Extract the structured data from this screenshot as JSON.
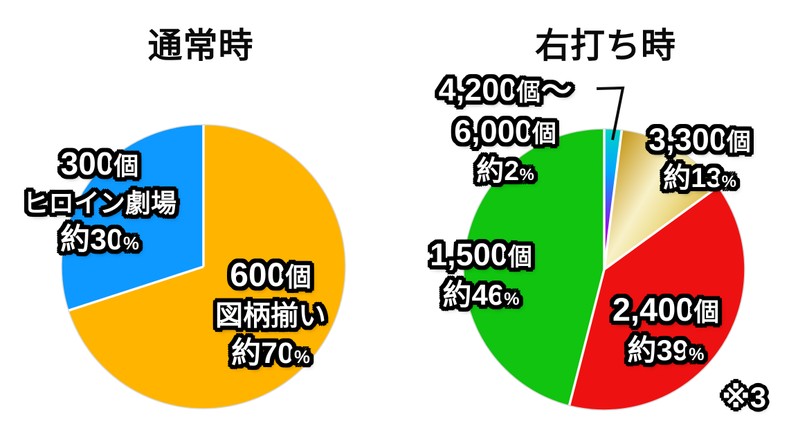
{
  "percent_symbol": "%",
  "chart_data": [
    {
      "type": "pie",
      "title": "通常時",
      "start_angle_deg": 0,
      "direction": "clockwise",
      "legend_position": "none",
      "slices": [
        {
          "label": "図柄揃い",
          "value": 70,
          "pct_text": "約70",
          "amount": "600",
          "amount_unit": "個",
          "color": "#FFB400"
        },
        {
          "label": "ヒロイン劇場",
          "value": 30,
          "pct_text": "約30",
          "amount": "300",
          "amount_unit": "個",
          "color": "#0D99FF"
        }
      ]
    },
    {
      "type": "pie",
      "title": "右打ち時",
      "start_angle_deg": 0,
      "direction": "clockwise",
      "legend_position": "none",
      "footnote": "※3",
      "slices": [
        {
          "label": "4,200個〜6,000個",
          "value": 2,
          "pct_text": "約2",
          "amount": "4,200",
          "amount_unit": "個",
          "amount_tilde": "〜",
          "amount2": "6,000",
          "amount2_unit": "個",
          "color": "gradient:rainbow"
        },
        {
          "label": "3,300個",
          "value": 13,
          "pct_text": "約13",
          "amount": "3,300",
          "amount_unit": "個",
          "color": "gradient:gold"
        },
        {
          "label": "2,400個",
          "value": 39,
          "pct_text": "約39",
          "amount": "2,400",
          "amount_unit": "個",
          "color": "#EE1111"
        },
        {
          "label": "1,500個",
          "value": 46,
          "pct_text": "約46",
          "amount": "1,500",
          "amount_unit": "個",
          "color": "#10C410"
        }
      ]
    }
  ],
  "gradients": {
    "rainbow": {
      "stops": [
        [
          0,
          "#00D2C8"
        ],
        [
          0.3,
          "#00A4FF"
        ],
        [
          0.55,
          "#5A45F0"
        ],
        [
          0.75,
          "#A800E0"
        ],
        [
          1,
          "#F704C4"
        ]
      ]
    },
    "gold": {
      "stops": [
        [
          0,
          "#C6991B"
        ],
        [
          0.42,
          "#F8F1C8"
        ],
        [
          0.62,
          "#EFDF93"
        ],
        [
          1,
          "#D6AF2D"
        ]
      ]
    }
  },
  "colors": {
    "separator": "#FFFFFF",
    "rim": "#DADADA",
    "callout_line": "#0D0D0D",
    "title_text": "#0A0A0A",
    "label_fill": "#FFFFFF",
    "label_outline": "#000000"
  }
}
